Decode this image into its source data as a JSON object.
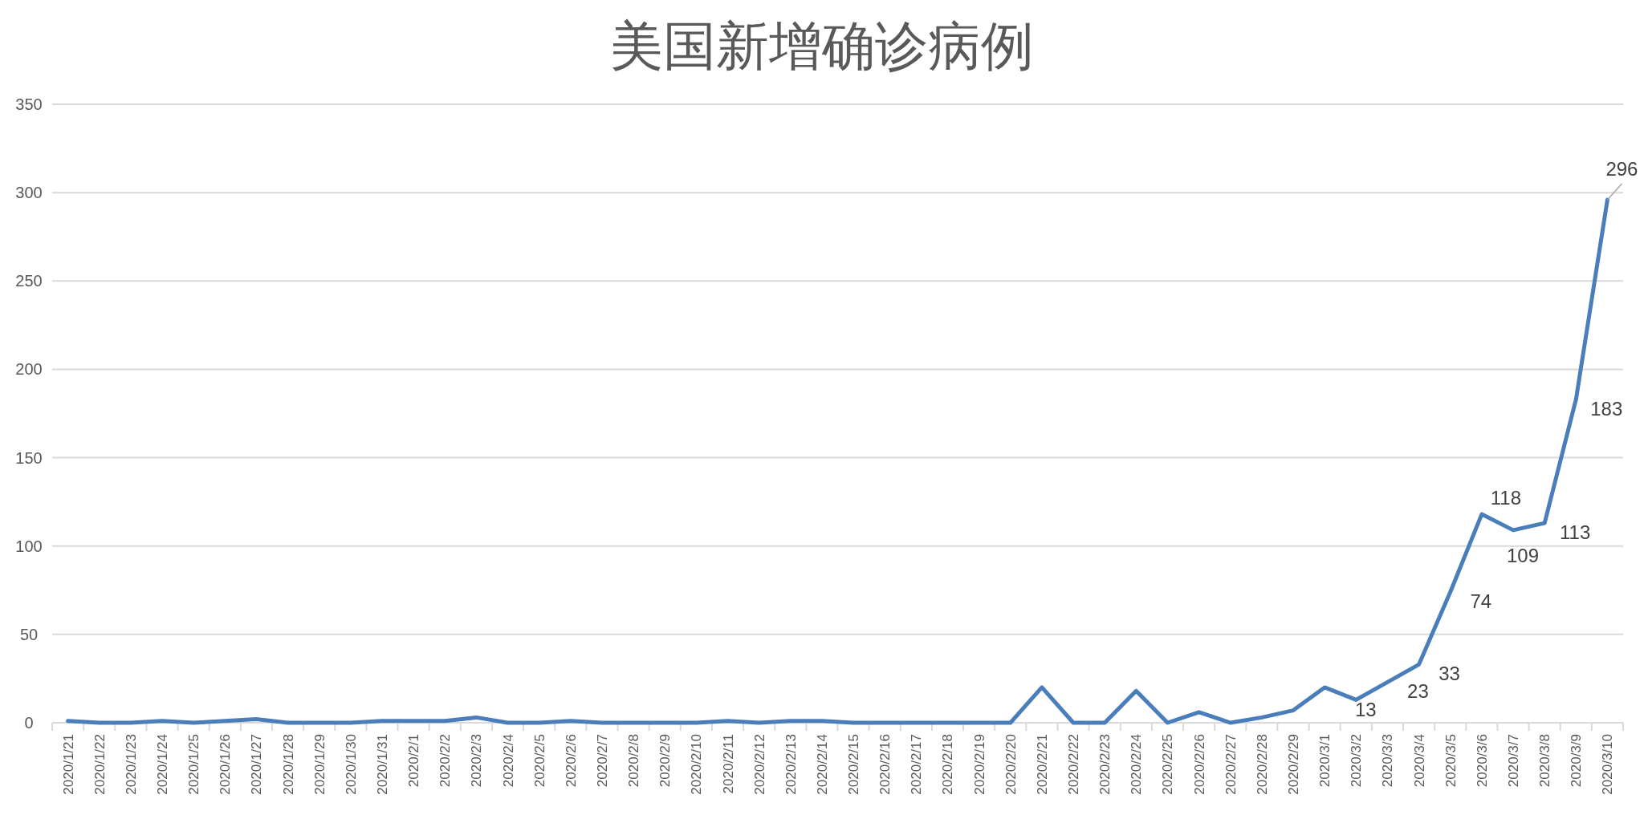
{
  "chart_data": {
    "type": "line",
    "title": "美国新增确诊病例",
    "categories": [
      "2020/1/21",
      "2020/1/22",
      "2020/1/23",
      "2020/1/24",
      "2020/1/25",
      "2020/1/26",
      "2020/1/27",
      "2020/1/28",
      "2020/1/29",
      "2020/1/30",
      "2020/1/31",
      "2020/2/1",
      "2020/2/2",
      "2020/2/3",
      "2020/2/4",
      "2020/2/5",
      "2020/2/6",
      "2020/2/7",
      "2020/2/8",
      "2020/2/9",
      "2020/2/10",
      "2020/2/11",
      "2020/2/12",
      "2020/2/13",
      "2020/2/14",
      "2020/2/15",
      "2020/2/16",
      "2020/2/17",
      "2020/2/18",
      "2020/2/19",
      "2020/2/20",
      "2020/2/21",
      "2020/2/22",
      "2020/2/23",
      "2020/2/24",
      "2020/2/25",
      "2020/2/26",
      "2020/2/27",
      "2020/2/28",
      "2020/2/29",
      "2020/3/1",
      "2020/3/2",
      "2020/3/3",
      "2020/3/4",
      "2020/3/5",
      "2020/3/6",
      "2020/3/7",
      "2020/3/8",
      "2020/3/9",
      "2020/3/10"
    ],
    "values": [
      1,
      0,
      0,
      1,
      0,
      1,
      2,
      0,
      0,
      0,
      1,
      1,
      1,
      3,
      0,
      0,
      1,
      0,
      0,
      0,
      0,
      1,
      0,
      1,
      1,
      0,
      0,
      0,
      0,
      0,
      0,
      20,
      0,
      0,
      18,
      0,
      6,
      0,
      3,
      7,
      20,
      13,
      23,
      33,
      74,
      118,
      109,
      113,
      183,
      296
    ],
    "value_labels": [
      null,
      null,
      null,
      null,
      null,
      null,
      null,
      null,
      null,
      null,
      null,
      null,
      null,
      null,
      null,
      null,
      null,
      null,
      null,
      null,
      null,
      null,
      null,
      null,
      null,
      null,
      null,
      null,
      null,
      null,
      null,
      null,
      null,
      null,
      null,
      null,
      null,
      null,
      null,
      null,
      null,
      "13",
      "23",
      "33",
      "74",
      "118",
      "109",
      "113",
      "183",
      "296"
    ],
    "color": "#4a7ebb",
    "ylim": [
      0,
      350
    ],
    "yticks": [
      0,
      50,
      100,
      150,
      200,
      250,
      300,
      350
    ],
    "grid": "y",
    "marker": "none",
    "line_style": "solid"
  }
}
